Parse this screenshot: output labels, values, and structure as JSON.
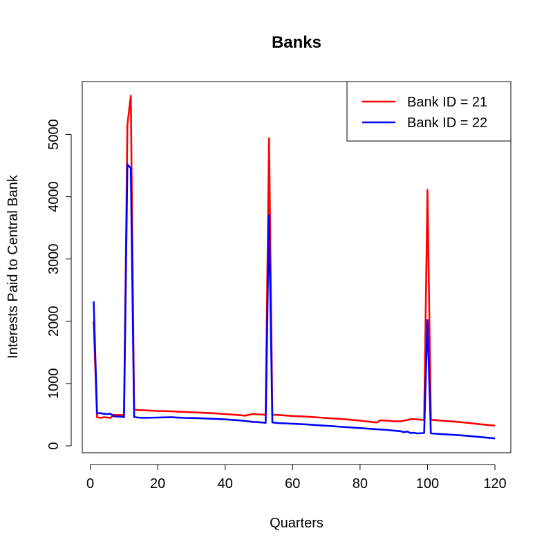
{
  "chart_data": {
    "type": "line",
    "title": "Banks",
    "xlabel": "Quarters",
    "ylabel": "Interests Paid to Central Bank",
    "xlim": [
      1,
      120
    ],
    "ylim": [
      0,
      5600
    ],
    "xticks": [
      0,
      20,
      40,
      60,
      80,
      100,
      120
    ],
    "yticks": [
      0,
      1000,
      2000,
      3000,
      4000,
      5000
    ],
    "grid": false,
    "legend_position": "top-right",
    "series": [
      {
        "name": "Bank ID = 21",
        "color": "#ff0000",
        "points": [
          [
            1,
            2000
          ],
          [
            2,
            460
          ],
          [
            3,
            450
          ],
          [
            4,
            460
          ],
          [
            5,
            455
          ],
          [
            6,
            450
          ],
          [
            7,
            500
          ],
          [
            8,
            495
          ],
          [
            9,
            495
          ],
          [
            10,
            495
          ],
          [
            11,
            5150
          ],
          [
            12,
            5620
          ],
          [
            13,
            580
          ],
          [
            14,
            575
          ],
          [
            16,
            570
          ],
          [
            20,
            560
          ],
          [
            24,
            555
          ],
          [
            28,
            545
          ],
          [
            32,
            535
          ],
          [
            36,
            525
          ],
          [
            40,
            510
          ],
          [
            44,
            495
          ],
          [
            46,
            485
          ],
          [
            48,
            510
          ],
          [
            50,
            505
          ],
          [
            52,
            500
          ],
          [
            53,
            4940
          ],
          [
            54,
            500
          ],
          [
            56,
            495
          ],
          [
            60,
            480
          ],
          [
            64,
            470
          ],
          [
            68,
            455
          ],
          [
            72,
            440
          ],
          [
            76,
            425
          ],
          [
            80,
            405
          ],
          [
            84,
            380
          ],
          [
            85,
            375
          ],
          [
            86,
            410
          ],
          [
            88,
            405
          ],
          [
            90,
            395
          ],
          [
            92,
            395
          ],
          [
            94,
            415
          ],
          [
            95,
            430
          ],
          [
            97,
            425
          ],
          [
            99,
            415
          ],
          [
            100,
            4110
          ],
          [
            101,
            420
          ],
          [
            104,
            405
          ],
          [
            108,
            390
          ],
          [
            112,
            370
          ],
          [
            116,
            345
          ],
          [
            120,
            325
          ]
        ]
      },
      {
        "name": "Bank ID = 22",
        "color": "#0000ff",
        "points": [
          [
            1,
            2320
          ],
          [
            2,
            520
          ],
          [
            3,
            525
          ],
          [
            4,
            515
          ],
          [
            5,
            510
          ],
          [
            6,
            515
          ],
          [
            7,
            475
          ],
          [
            8,
            470
          ],
          [
            9,
            470
          ],
          [
            10,
            460
          ],
          [
            11,
            4520
          ],
          [
            12,
            4460
          ],
          [
            13,
            465
          ],
          [
            14,
            455
          ],
          [
            16,
            450
          ],
          [
            20,
            455
          ],
          [
            24,
            460
          ],
          [
            28,
            450
          ],
          [
            32,
            445
          ],
          [
            36,
            435
          ],
          [
            40,
            425
          ],
          [
            44,
            410
          ],
          [
            46,
            400
          ],
          [
            48,
            385
          ],
          [
            50,
            380
          ],
          [
            52,
            370
          ],
          [
            53,
            3700
          ],
          [
            54,
            375
          ],
          [
            56,
            365
          ],
          [
            60,
            355
          ],
          [
            64,
            345
          ],
          [
            68,
            330
          ],
          [
            72,
            315
          ],
          [
            76,
            300
          ],
          [
            80,
            285
          ],
          [
            84,
            270
          ],
          [
            88,
            255
          ],
          [
            90,
            245
          ],
          [
            92,
            235
          ],
          [
            93,
            220
          ],
          [
            94,
            230
          ],
          [
            95,
            205
          ],
          [
            96,
            210
          ],
          [
            97,
            200
          ],
          [
            99,
            205
          ],
          [
            100,
            2020
          ],
          [
            101,
            200
          ],
          [
            104,
            190
          ],
          [
            108,
            175
          ],
          [
            112,
            160
          ],
          [
            116,
            140
          ],
          [
            120,
            120
          ]
        ]
      }
    ]
  }
}
